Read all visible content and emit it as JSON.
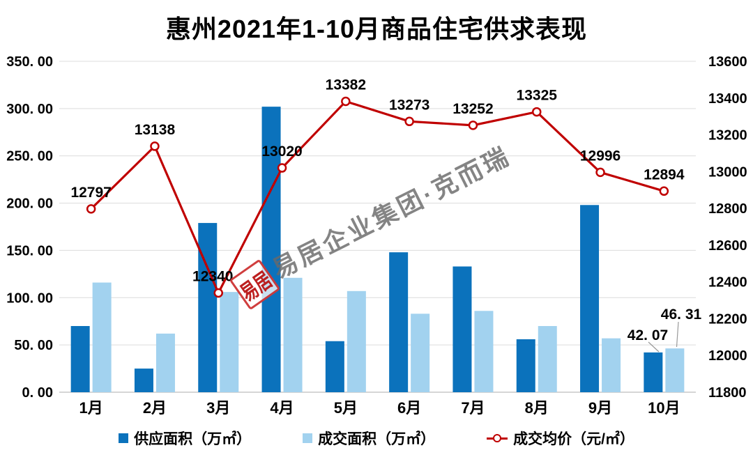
{
  "title": "惠州2021年1-10月商品住宅供求表现",
  "watermark": {
    "text": "易居企业集团·克而瑞",
    "seal_text": "易居"
  },
  "chart_data": {
    "type": "bar+line",
    "categories": [
      "1月",
      "2月",
      "3月",
      "4月",
      "5月",
      "6月",
      "7月",
      "8月",
      "9月",
      "10月"
    ],
    "series": [
      {
        "name": "供应面积（万㎡）",
        "type": "bar",
        "axis": "left",
        "color": "#0b72bc",
        "values": [
          70,
          25,
          179,
          302,
          54,
          148,
          133,
          56,
          198,
          42.07
        ]
      },
      {
        "name": "成交面积（万㎡）",
        "type": "bar",
        "axis": "left",
        "color": "#a2d2ef",
        "values": [
          116,
          62,
          106,
          121,
          107,
          83,
          86,
          70,
          57,
          46.31
        ]
      },
      {
        "name": "成交均价（元/㎡）",
        "type": "line",
        "axis": "right",
        "color": "#c00000",
        "values": [
          12797,
          13138,
          12340,
          13020,
          13382,
          13273,
          13252,
          13325,
          12996,
          12894
        ],
        "labels": [
          "12797",
          "13138",
          "12340",
          "13020",
          "13382",
          "13273",
          "13252",
          "13325",
          "12996",
          "12894"
        ]
      }
    ],
    "left_axis": {
      "min": 0,
      "max": 350,
      "step": 50,
      "labels": [
        "350.00",
        "300.00",
        "250.00",
        "200.00",
        "150.00",
        "100.00",
        "50.00",
        "0.00"
      ]
    },
    "right_axis": {
      "min": 11800,
      "max": 13600,
      "step": 200,
      "labels": [
        "13600",
        "13400",
        "13200",
        "13000",
        "12800",
        "12600",
        "12400",
        "12200",
        "12000",
        "11800"
      ]
    },
    "bar_value_labels": [
      {
        "series": 0,
        "category": "10月",
        "text": "42.07"
      },
      {
        "series": 1,
        "category": "10月",
        "text": "46.31"
      }
    ],
    "grid": true,
    "legend_position": "bottom"
  }
}
